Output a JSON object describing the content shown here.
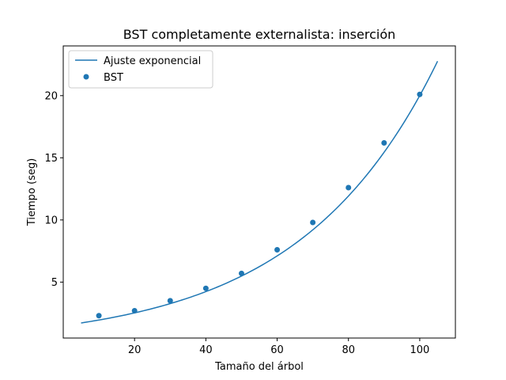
{
  "chart_data": {
    "type": "scatter",
    "title": "BST completamente externalista: inserción",
    "xlabel": "Tamaño del árbol",
    "ylabel": "Tiempo (seg)",
    "xlim": [
      0,
      110
    ],
    "ylim": [
      0.5,
      24
    ],
    "xticks": [
      20,
      40,
      60,
      80,
      100
    ],
    "yticks": [
      5,
      10,
      15,
      20
    ],
    "grid": false,
    "legend_position": "top-left",
    "colors": {
      "series": "#1f77b4",
      "axes": "#000000",
      "background": "#ffffff"
    },
    "series": [
      {
        "name": "Ajuste exponencial",
        "kind": "line",
        "model": "y = a * exp(b * x)",
        "a": 1.504,
        "b": 0.02588,
        "x_range": [
          5,
          105
        ]
      },
      {
        "name": "BST",
        "kind": "scatter",
        "x": [
          10,
          20,
          30,
          40,
          50,
          60,
          70,
          80,
          90,
          100
        ],
        "y": [
          2.3,
          2.7,
          3.5,
          4.5,
          5.7,
          7.6,
          9.8,
          12.6,
          16.2,
          20.1
        ]
      }
    ]
  }
}
